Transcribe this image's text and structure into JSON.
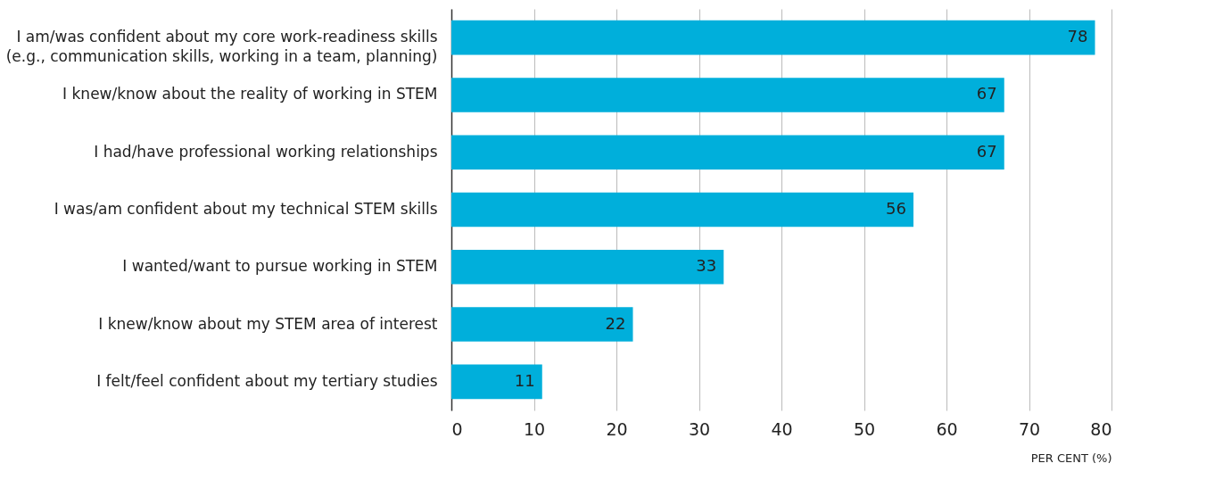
{
  "chart_data": {
    "type": "bar",
    "orientation": "horizontal",
    "xlabel": "PER CENT (%)",
    "categories": [
      "I am/was confident about my core work-readiness skills\n(e.g., communication skills, working in a team, planning)",
      "I knew/know about the reality of working in STEM",
      "I had/have professional working relationships",
      "I was/am confident about my technical STEM skills",
      "I wanted/want to pursue working in STEM",
      "I knew/know about my STEM area of interest",
      "I felt/feel confident about my tertiary studies"
    ],
    "values": [
      78,
      67,
      67,
      56,
      33,
      22,
      11
    ],
    "color": "#00afdb",
    "xlim": [
      0,
      80
    ],
    "xticks": [
      0,
      10,
      20,
      30,
      40,
      50,
      60,
      70,
      80
    ],
    "grid": "x",
    "data_labels": true
  }
}
